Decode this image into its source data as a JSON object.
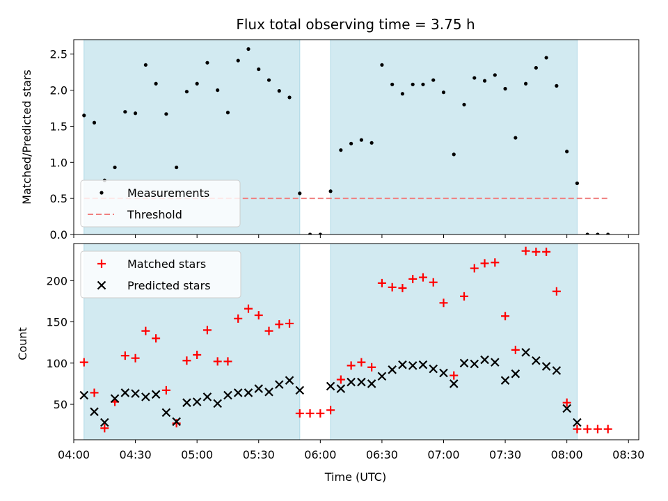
{
  "chart_data": [
    {
      "type": "scatter",
      "title": "Flux total observing time = 3.75 h",
      "ylabel": "Matched/Predicted stars",
      "xlabel": "",
      "xlim": [
        "04:00",
        "08:35"
      ],
      "ylim": [
        0,
        2.7
      ],
      "yticks": [
        0.0,
        0.5,
        1.0,
        1.5,
        2.0,
        2.5
      ],
      "ytick_labels": [
        "0.0",
        "0.5",
        "1.0",
        "1.5",
        "2.0",
        "2.5"
      ],
      "shaded_intervals": [
        [
          "04:05",
          "05:50"
        ],
        [
          "06:05",
          "08:05"
        ]
      ],
      "shade_color": "#add8e6",
      "legend": {
        "placement": "lower-left",
        "entries": [
          {
            "label": "Measurements",
            "marker": "dot",
            "color": "#000000"
          },
          {
            "label": "Threshold",
            "marker": "dashed-line",
            "color": "#f08080"
          }
        ]
      },
      "threshold": {
        "name": "Threshold",
        "value": 0.5,
        "x_range": [
          "04:05",
          "08:20"
        ],
        "color": "#f08080"
      },
      "series": [
        {
          "name": "Measurements",
          "color": "#000000",
          "points": [
            [
              "04:05",
              1.65
            ],
            [
              "04:10",
              1.55
            ],
            [
              "04:15",
              0.75
            ],
            [
              "04:20",
              0.93
            ],
            [
              "04:25",
              1.7
            ],
            [
              "04:30",
              1.68
            ],
            [
              "04:35",
              2.35
            ],
            [
              "04:40",
              2.09
            ],
            [
              "04:45",
              1.67
            ],
            [
              "04:50",
              0.93
            ],
            [
              "04:55",
              1.98
            ],
            [
              "05:00",
              2.09
            ],
            [
              "05:05",
              2.38
            ],
            [
              "05:10",
              2.0
            ],
            [
              "05:15",
              1.69
            ],
            [
              "05:20",
              2.41
            ],
            [
              "05:25",
              2.57
            ],
            [
              "05:30",
              2.29
            ],
            [
              "05:35",
              2.14
            ],
            [
              "05:40",
              1.99
            ],
            [
              "05:45",
              1.9
            ],
            [
              "05:50",
              0.57
            ],
            [
              "05:55",
              0.0
            ],
            [
              "06:00",
              0.0
            ],
            [
              "06:05",
              0.6
            ],
            [
              "06:10",
              1.17
            ],
            [
              "06:15",
              1.26
            ],
            [
              "06:20",
              1.31
            ],
            [
              "06:25",
              1.27
            ],
            [
              "06:30",
              2.35
            ],
            [
              "06:35",
              2.08
            ],
            [
              "06:40",
              1.95
            ],
            [
              "06:45",
              2.08
            ],
            [
              "06:50",
              2.08
            ],
            [
              "06:55",
              2.14
            ],
            [
              "07:00",
              1.97
            ],
            [
              "07:05",
              1.11
            ],
            [
              "07:10",
              1.8
            ],
            [
              "07:15",
              2.17
            ],
            [
              "07:20",
              2.13
            ],
            [
              "07:25",
              2.21
            ],
            [
              "07:30",
              2.02
            ],
            [
              "07:35",
              1.34
            ],
            [
              "07:40",
              2.09
            ],
            [
              "07:45",
              2.31
            ],
            [
              "07:50",
              2.45
            ],
            [
              "07:55",
              2.06
            ],
            [
              "08:00",
              1.15
            ],
            [
              "08:05",
              0.71
            ],
            [
              "08:10",
              0.0
            ],
            [
              "08:15",
              0.0
            ],
            [
              "08:20",
              0.0
            ]
          ]
        }
      ]
    },
    {
      "type": "scatter",
      "xlabel": "Time (UTC)",
      "ylabel": "Count",
      "xlim": [
        "04:00",
        "08:35"
      ],
      "ylim": [
        7,
        245
      ],
      "yticks": [
        50,
        100,
        150,
        200
      ],
      "ytick_labels": [
        "50",
        "100",
        "150",
        "200"
      ],
      "xticks": [
        "04:00",
        "04:30",
        "05:00",
        "05:30",
        "06:00",
        "06:30",
        "07:00",
        "07:30",
        "08:00",
        "08:30"
      ],
      "xtick_labels": [
        "04:00",
        "04:30",
        "05:00",
        "05:30",
        "06:00",
        "06:30",
        "07:00",
        "07:30",
        "08:00",
        "08:30"
      ],
      "shaded_intervals": [
        [
          "04:05",
          "05:50"
        ],
        [
          "06:05",
          "08:05"
        ]
      ],
      "shade_color": "#add8e6",
      "legend": {
        "placement": "top-left",
        "entries": [
          {
            "label": "Matched stars",
            "marker": "plus",
            "color": "#ff0000"
          },
          {
            "label": "Predicted stars",
            "marker": "x",
            "color": "#000000"
          }
        ]
      },
      "series": [
        {
          "name": "Matched stars",
          "marker": "plus",
          "color": "#ff0000",
          "points": [
            [
              "04:05",
              101
            ],
            [
              "04:10",
              64
            ],
            [
              "04:15",
              21
            ],
            [
              "04:20",
              53
            ],
            [
              "04:25",
              109
            ],
            [
              "04:30",
              106
            ],
            [
              "04:35",
              139
            ],
            [
              "04:40",
              130
            ],
            [
              "04:45",
              67
            ],
            [
              "04:50",
              27
            ],
            [
              "04:55",
              103
            ],
            [
              "05:00",
              110
            ],
            [
              "05:05",
              140
            ],
            [
              "05:10",
              102
            ],
            [
              "05:15",
              102
            ],
            [
              "05:20",
              154
            ],
            [
              "05:25",
              166
            ],
            [
              "05:30",
              158
            ],
            [
              "05:35",
              139
            ],
            [
              "05:40",
              147
            ],
            [
              "05:45",
              148
            ],
            [
              "05:50",
              39
            ],
            [
              "05:55",
              39
            ],
            [
              "06:00",
              39
            ],
            [
              "06:05",
              43
            ],
            [
              "06:10",
              80
            ],
            [
              "06:15",
              97
            ],
            [
              "06:20",
              101
            ],
            [
              "06:25",
              95
            ],
            [
              "06:30",
              197
            ],
            [
              "06:35",
              192
            ],
            [
              "06:40",
              191
            ],
            [
              "06:45",
              202
            ],
            [
              "06:50",
              204
            ],
            [
              "06:55",
              198
            ],
            [
              "07:00",
              173
            ],
            [
              "07:05",
              85
            ],
            [
              "07:10",
              181
            ],
            [
              "07:15",
              215
            ],
            [
              "07:20",
              221
            ],
            [
              "07:25",
              222
            ],
            [
              "07:30",
              157
            ],
            [
              "07:35",
              116
            ],
            [
              "07:40",
              236
            ],
            [
              "07:45",
              235
            ],
            [
              "07:50",
              235
            ],
            [
              "07:55",
              187
            ],
            [
              "08:00",
              52
            ],
            [
              "08:05",
              20
            ],
            [
              "08:10",
              20
            ],
            [
              "08:15",
              20
            ],
            [
              "08:20",
              20
            ]
          ]
        },
        {
          "name": "Predicted stars",
          "marker": "x",
          "color": "#000000",
          "points": [
            [
              "04:05",
              61
            ],
            [
              "04:10",
              41
            ],
            [
              "04:15",
              28
            ],
            [
              "04:20",
              57
            ],
            [
              "04:25",
              64
            ],
            [
              "04:30",
              63
            ],
            [
              "04:35",
              59
            ],
            [
              "04:40",
              62
            ],
            [
              "04:45",
              40
            ],
            [
              "04:50",
              29
            ],
            [
              "04:55",
              52
            ],
            [
              "05:00",
              53
            ],
            [
              "05:05",
              59
            ],
            [
              "05:10",
              51
            ],
            [
              "05:15",
              61
            ],
            [
              "05:20",
              64
            ],
            [
              "05:25",
              64
            ],
            [
              "05:30",
              69
            ],
            [
              "05:35",
              65
            ],
            [
              "05:40",
              74
            ],
            [
              "05:45",
              79
            ],
            [
              "05:50",
              67
            ],
            [
              "06:05",
              72
            ],
            [
              "06:10",
              69
            ],
            [
              "06:15",
              77
            ],
            [
              "06:20",
              77
            ],
            [
              "06:25",
              75
            ],
            [
              "06:30",
              84
            ],
            [
              "06:35",
              92
            ],
            [
              "06:40",
              98
            ],
            [
              "06:45",
              97
            ],
            [
              "06:50",
              98
            ],
            [
              "06:55",
              93
            ],
            [
              "07:00",
              88
            ],
            [
              "07:05",
              75
            ],
            [
              "07:10",
              100
            ],
            [
              "07:15",
              99
            ],
            [
              "07:20",
              104
            ],
            [
              "07:25",
              101
            ],
            [
              "07:30",
              79
            ],
            [
              "07:35",
              87
            ],
            [
              "07:40",
              113
            ],
            [
              "07:45",
              103
            ],
            [
              "07:50",
              96
            ],
            [
              "07:55",
              91
            ],
            [
              "08:00",
              45
            ],
            [
              "08:05",
              28
            ]
          ]
        }
      ]
    }
  ]
}
